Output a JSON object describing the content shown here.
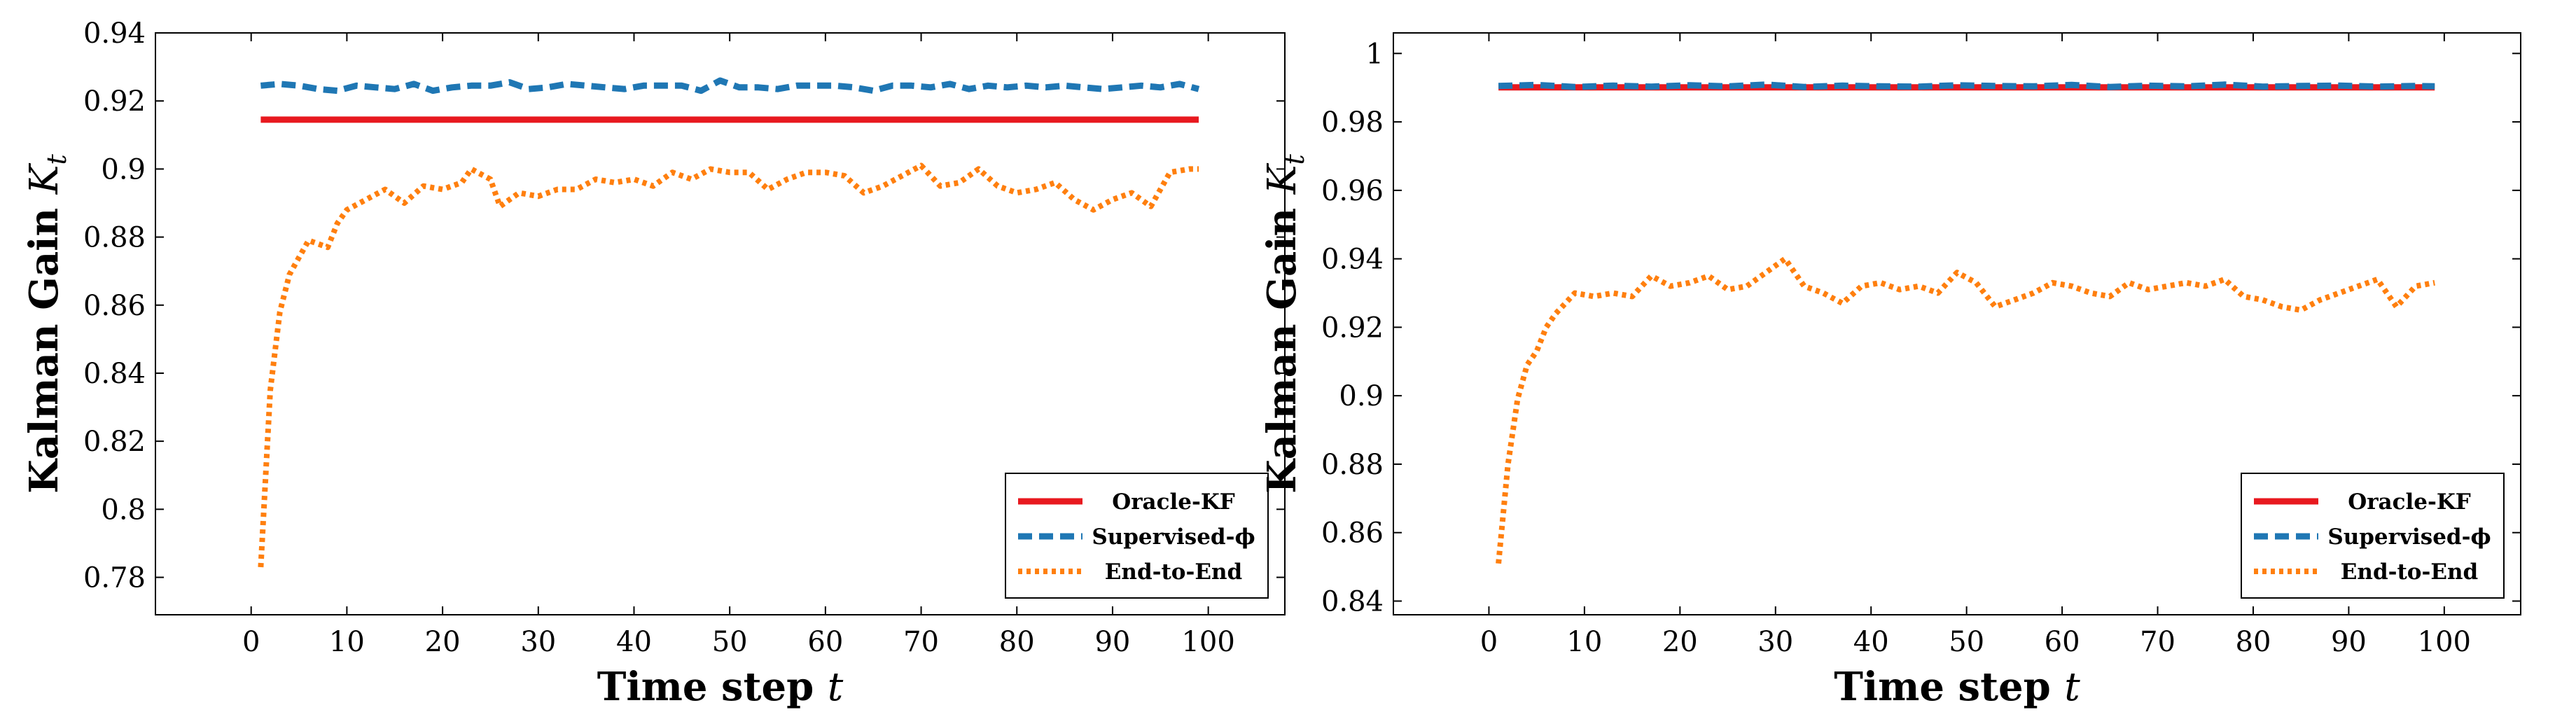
{
  "chart_data": [
    {
      "type": "line",
      "xlabel": "Time step",
      "xlabel_var": "t",
      "ylabel": "Kalman Gain",
      "ylabel_var": "K",
      "ylabel_sub": "t",
      "xlim": [
        -10,
        108
      ],
      "ylim": [
        0.769,
        0.94
      ],
      "xticks": [
        0,
        10,
        20,
        30,
        40,
        50,
        60,
        70,
        80,
        90,
        100
      ],
      "xtick_labels": [
        "0",
        "10",
        "20",
        "30",
        "40",
        "50",
        "60",
        "70",
        "80",
        "90",
        "100"
      ],
      "yticks": [
        0.78,
        0.8,
        0.82,
        0.84,
        0.86,
        0.88,
        0.9,
        0.92,
        0.94
      ],
      "ytick_labels": [
        "0.78",
        "0.8",
        "0.82",
        "0.84",
        "0.86",
        "0.88",
        "0.9",
        "0.92",
        "0.94"
      ],
      "grid": false,
      "legend_position": "bottom-right",
      "series": [
        {
          "name": "Oracle-KF",
          "style": "solid",
          "color": "#e8191f",
          "x": [
            1,
            99
          ],
          "y": [
            0.9145,
            0.9145
          ]
        },
        {
          "name": "Supervised-ϕ",
          "style": "dashed",
          "color": "#1f77b4",
          "x": [
            1,
            3,
            5,
            7,
            9,
            11,
            13,
            15,
            17,
            19,
            21,
            23,
            25,
            27,
            29,
            31,
            33,
            35,
            37,
            39,
            41,
            43,
            45,
            47,
            49,
            51,
            53,
            55,
            57,
            59,
            61,
            63,
            65,
            67,
            69,
            71,
            73,
            75,
            77,
            79,
            81,
            83,
            85,
            87,
            89,
            91,
            93,
            95,
            97,
            99
          ],
          "y": [
            0.9245,
            0.925,
            0.9245,
            0.9235,
            0.923,
            0.9245,
            0.924,
            0.9235,
            0.925,
            0.923,
            0.924,
            0.9245,
            0.9245,
            0.9255,
            0.9235,
            0.924,
            0.925,
            0.9245,
            0.924,
            0.9235,
            0.9245,
            0.9245,
            0.9245,
            0.923,
            0.926,
            0.924,
            0.924,
            0.9235,
            0.9245,
            0.9245,
            0.9245,
            0.924,
            0.923,
            0.9245,
            0.9245,
            0.924,
            0.925,
            0.9235,
            0.9245,
            0.924,
            0.9245,
            0.924,
            0.9245,
            0.924,
            0.9235,
            0.924,
            0.9245,
            0.924,
            0.925,
            0.9235
          ]
        },
        {
          "name": "End-to-End",
          "style": "dotted",
          "color": "#ff7f0e",
          "x": [
            1,
            2,
            3,
            4,
            5,
            6,
            7,
            8,
            9,
            10,
            12,
            14,
            16,
            18,
            20,
            22,
            23,
            25,
            26,
            28,
            30,
            32,
            34,
            36,
            38,
            40,
            42,
            44,
            46,
            48,
            50,
            52,
            54,
            56,
            58,
            60,
            62,
            64,
            66,
            68,
            70,
            72,
            74,
            76,
            78,
            80,
            82,
            84,
            86,
            88,
            90,
            92,
            94,
            96,
            98,
            99
          ],
          "y": [
            0.783,
            0.835,
            0.858,
            0.869,
            0.874,
            0.879,
            0.878,
            0.877,
            0.884,
            0.888,
            0.891,
            0.894,
            0.89,
            0.895,
            0.894,
            0.896,
            0.9,
            0.897,
            0.889,
            0.893,
            0.892,
            0.894,
            0.894,
            0.897,
            0.896,
            0.897,
            0.895,
            0.899,
            0.897,
            0.9,
            0.899,
            0.899,
            0.894,
            0.897,
            0.899,
            0.899,
            0.898,
            0.893,
            0.895,
            0.898,
            0.901,
            0.895,
            0.896,
            0.9,
            0.895,
            0.893,
            0.894,
            0.896,
            0.891,
            0.888,
            0.891,
            0.893,
            0.889,
            0.899,
            0.9,
            0.9
          ]
        }
      ]
    },
    {
      "type": "line",
      "xlabel": "Time step",
      "xlabel_var": "t",
      "ylabel": "Kalman Gain",
      "ylabel_var": "K",
      "ylabel_sub": "t",
      "xlim": [
        -10,
        108
      ],
      "ylim": [
        0.836,
        1.006
      ],
      "xticks": [
        0,
        10,
        20,
        30,
        40,
        50,
        60,
        70,
        80,
        90,
        100
      ],
      "xtick_labels": [
        "0",
        "10",
        "20",
        "30",
        "40",
        "50",
        "60",
        "70",
        "80",
        "90",
        "100"
      ],
      "yticks": [
        0.84,
        0.86,
        0.88,
        0.9,
        0.92,
        0.94,
        0.96,
        0.98,
        1.0
      ],
      "ytick_labels": [
        "0.84",
        "0.86",
        "0.88",
        "0.9",
        "0.92",
        "0.94",
        "0.96",
        "0.98",
        "1"
      ],
      "grid": false,
      "legend_position": "bottom-right",
      "series": [
        {
          "name": "Oracle-KF",
          "style": "solid",
          "color": "#e8191f",
          "x": [
            1,
            99
          ],
          "y": [
            0.9901,
            0.9901
          ]
        },
        {
          "name": "Supervised-ϕ",
          "style": "dashed",
          "color": "#1f77b4",
          "x": [
            1,
            5,
            9,
            13,
            17,
            21,
            25,
            29,
            33,
            37,
            41,
            45,
            49,
            53,
            57,
            61,
            65,
            69,
            73,
            77,
            81,
            85,
            89,
            93,
            97,
            99
          ],
          "y": [
            0.9905,
            0.9908,
            0.9902,
            0.9906,
            0.9903,
            0.9907,
            0.9904,
            0.9909,
            0.9902,
            0.9906,
            0.9904,
            0.9903,
            0.9907,
            0.9905,
            0.9904,
            0.9908,
            0.9902,
            0.9906,
            0.9904,
            0.9909,
            0.9903,
            0.9905,
            0.9906,
            0.9903,
            0.9905,
            0.9904
          ]
        },
        {
          "name": "End-to-End",
          "style": "dotted",
          "color": "#ff7f0e",
          "x": [
            1,
            2,
            3,
            4,
            5,
            6,
            7,
            8,
            9,
            11,
            13,
            15,
            17,
            19,
            21,
            23,
            25,
            27,
            29,
            31,
            33,
            35,
            37,
            39,
            41,
            43,
            45,
            47,
            49,
            51,
            53,
            55,
            57,
            59,
            61,
            63,
            65,
            67,
            69,
            71,
            73,
            75,
            77,
            79,
            81,
            83,
            85,
            87,
            89,
            91,
            93,
            95,
            97,
            99
          ],
          "y": [
            0.851,
            0.88,
            0.899,
            0.909,
            0.913,
            0.92,
            0.924,
            0.927,
            0.93,
            0.929,
            0.93,
            0.929,
            0.935,
            0.932,
            0.933,
            0.935,
            0.931,
            0.932,
            0.936,
            0.94,
            0.932,
            0.93,
            0.927,
            0.932,
            0.933,
            0.931,
            0.932,
            0.93,
            0.936,
            0.933,
            0.926,
            0.928,
            0.93,
            0.933,
            0.932,
            0.93,
            0.929,
            0.933,
            0.931,
            0.932,
            0.933,
            0.932,
            0.934,
            0.929,
            0.928,
            0.926,
            0.925,
            0.928,
            0.93,
            0.932,
            0.934,
            0.926,
            0.932,
            0.933
          ]
        }
      ]
    }
  ]
}
